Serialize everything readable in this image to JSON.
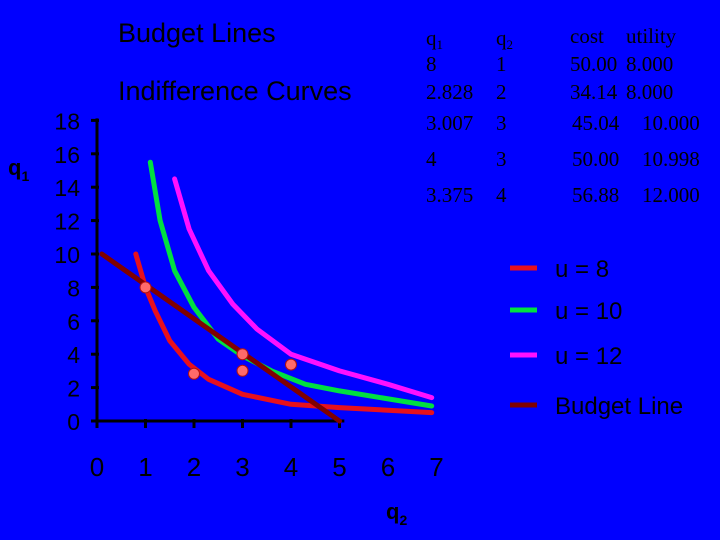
{
  "titles": {
    "line1": "Budget Lines",
    "line2": "Indifference Curves"
  },
  "table": {
    "headers": {
      "q1": {
        "main": "q",
        "sub": "1"
      },
      "q2": {
        "main": "q",
        "sub": "2"
      },
      "cost": "cost",
      "utility": "utility"
    },
    "rows": [
      {
        "q1": "8",
        "q2": "1",
        "cost": "50.00",
        "utility": "8.000"
      },
      {
        "q1": "2.828",
        "q2": "2",
        "cost": "34.14",
        "utility": "8.000"
      },
      {
        "q1": "3.007",
        "q2": "3",
        "cost": "45.04",
        "utility": "10.000"
      },
      {
        "q1": "4",
        "q2": "3",
        "cost": "50.00",
        "utility": "10.998"
      },
      {
        "q1": "3.375",
        "q2": "4",
        "cost": "56.88",
        "utility": "12.000"
      }
    ]
  },
  "chart_data": {
    "type": "line",
    "title": "",
    "xlabel": {
      "main": "q",
      "sub": "2"
    },
    "ylabel": {
      "main": "q",
      "sub": "1"
    },
    "xlim": [
      0,
      7
    ],
    "ylim": [
      0,
      18
    ],
    "xticks": [
      "0",
      "1",
      "2",
      "3",
      "4",
      "5",
      "6",
      "7"
    ],
    "yticks": [
      "0",
      "2",
      "4",
      "6",
      "8",
      "10",
      "12",
      "14",
      "16",
      "18"
    ],
    "legend_position": "right",
    "series": [
      {
        "name": "u = 8",
        "color": "#e8101c",
        "points": [
          [
            0.8,
            10
          ],
          [
            1,
            8
          ],
          [
            1.2,
            6.6
          ],
          [
            1.5,
            4.8
          ],
          [
            1.9,
            3.4
          ],
          [
            2.3,
            2.5
          ],
          [
            3,
            1.6
          ],
          [
            4,
            1.0
          ],
          [
            5,
            0.8
          ],
          [
            6.9,
            0.5
          ]
        ]
      },
      {
        "name": "u = 10",
        "color": "#00e040",
        "points": [
          [
            1.1,
            15.5
          ],
          [
            1.3,
            12
          ],
          [
            1.6,
            9
          ],
          [
            2,
            6.8
          ],
          [
            2.5,
            4.9
          ],
          [
            3,
            3.9
          ],
          [
            3.6,
            3.0
          ],
          [
            4.3,
            2.2
          ],
          [
            5,
            1.8
          ],
          [
            6.9,
            0.9
          ]
        ]
      },
      {
        "name": "u = 12",
        "color": "#ff10ff",
        "points": [
          [
            1.6,
            14.5
          ],
          [
            1.9,
            11.5
          ],
          [
            2.3,
            9.0
          ],
          [
            2.8,
            7.0
          ],
          [
            3.3,
            5.5
          ],
          [
            4,
            4.0
          ],
          [
            5,
            3.0
          ],
          [
            6,
            2.2
          ],
          [
            6.9,
            1.4
          ]
        ]
      },
      {
        "name": "Budget Line",
        "color": "#800000",
        "points": [
          [
            0.1,
            10
          ],
          [
            5,
            0
          ]
        ]
      }
    ],
    "markers": [
      {
        "x": 1,
        "y": 8
      },
      {
        "x": 2,
        "y": 2.828
      },
      {
        "x": 3,
        "y": 3.007
      },
      {
        "x": 3,
        "y": 4
      },
      {
        "x": 4,
        "y": 3.375
      }
    ],
    "marker_color": "#ff6a6a"
  }
}
